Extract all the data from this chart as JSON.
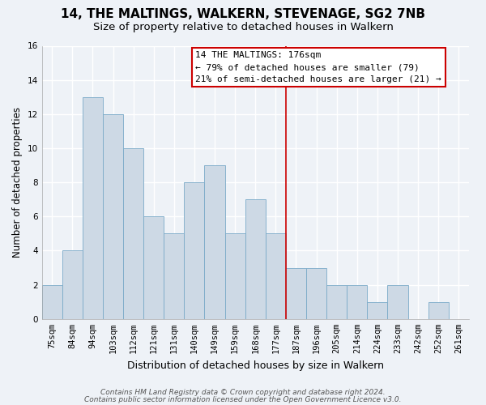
{
  "title": "14, THE MALTINGS, WALKERN, STEVENAGE, SG2 7NB",
  "subtitle": "Size of property relative to detached houses in Walkern",
  "xlabel": "Distribution of detached houses by size in Walkern",
  "ylabel": "Number of detached properties",
  "categories": [
    "75sqm",
    "84sqm",
    "94sqm",
    "103sqm",
    "112sqm",
    "121sqm",
    "131sqm",
    "140sqm",
    "149sqm",
    "159sqm",
    "168sqm",
    "177sqm",
    "187sqm",
    "196sqm",
    "205sqm",
    "214sqm",
    "224sqm",
    "233sqm",
    "242sqm",
    "252sqm",
    "261sqm"
  ],
  "values": [
    2,
    4,
    13,
    12,
    10,
    6,
    5,
    8,
    9,
    5,
    7,
    5,
    3,
    3,
    2,
    2,
    1,
    2,
    0,
    1,
    0
  ],
  "bar_color": "#cdd9e5",
  "bar_edge_color": "#7aaac8",
  "highlight_index": 11,
  "highlight_line_color": "#cc0000",
  "box_text_line1": "14 THE MALTINGS: 176sqm",
  "box_text_line2": "← 79% of detached houses are smaller (79)",
  "box_text_line3": "21% of semi-detached houses are larger (21) →",
  "box_edge_color": "#cc0000",
  "ylim": [
    0,
    16
  ],
  "yticks": [
    0,
    2,
    4,
    6,
    8,
    10,
    12,
    14,
    16
  ],
  "footnote1": "Contains HM Land Registry data © Crown copyright and database right 2024.",
  "footnote2": "Contains public sector information licensed under the Open Government Licence v3.0.",
  "bg_color": "#eef2f7",
  "grid_color": "#ffffff",
  "title_fontsize": 11,
  "subtitle_fontsize": 9.5,
  "xlabel_fontsize": 9,
  "ylabel_fontsize": 8.5,
  "tick_fontsize": 7.5,
  "footnote_fontsize": 6.5
}
